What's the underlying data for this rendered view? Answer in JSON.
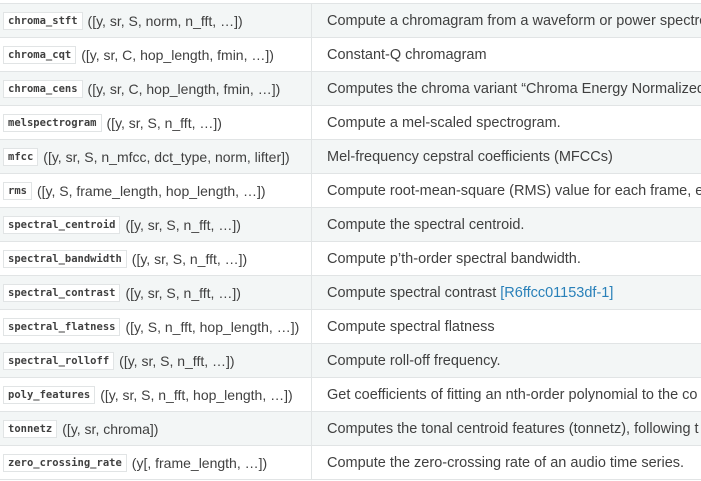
{
  "rows": [
    {
      "func": "chroma_stft",
      "args": "([y, sr, S, norm, n_fft, …])",
      "desc": "Compute a chromagram from a waveform or power spectro"
    },
    {
      "func": "chroma_cqt",
      "args": "([y, sr, C, hop_length, fmin, …])",
      "desc": "Constant-Q chromagram"
    },
    {
      "func": "chroma_cens",
      "args": "([y, sr, C, hop_length, fmin, …])",
      "desc": "Computes the chroma variant “Chroma Energy Normalized”"
    },
    {
      "func": "melspectrogram",
      "args": "([y, sr, S, n_fft, …])",
      "desc": "Compute a mel-scaled spectrogram."
    },
    {
      "func": "mfcc",
      "args": "([y, sr, S, n_mfcc, dct_type, norm, lifter])",
      "desc": "Mel-frequency cepstral coefficients (MFCCs)"
    },
    {
      "func": "rms",
      "args": "([y, S, frame_length, hop_length, …])",
      "desc": "Compute root-mean-square (RMS) value for each frame, eit"
    },
    {
      "func": "spectral_centroid",
      "args": "([y, sr, S, n_fft, …])",
      "desc": "Compute the spectral centroid."
    },
    {
      "func": "spectral_bandwidth",
      "args": "([y, sr, S, n_fft, …])",
      "desc": "Compute p’th-order spectral bandwidth."
    },
    {
      "func": "spectral_contrast",
      "args": "([y, sr, S, n_fft, …])",
      "desc": "Compute spectral contrast",
      "link": "[R6ffcc01153df-1]"
    },
    {
      "func": "spectral_flatness",
      "args": "([y, S, n_fft, hop_length, …])",
      "desc": "Compute spectral flatness"
    },
    {
      "func": "spectral_rolloff",
      "args": "([y, sr, S, n_fft, …])",
      "desc": "Compute roll-off frequency."
    },
    {
      "func": "poly_features",
      "args": "([y, sr, S, n_fft, hop_length, …])",
      "desc": "Get coefficients of fitting an nth-order polynomial to the co"
    },
    {
      "func": "tonnetz",
      "args": "([y, sr, chroma])",
      "desc": "Computes the tonal centroid features (tonnetz), following t"
    },
    {
      "func": "zero_crossing_rate",
      "args": "(y[, frame_length, …])",
      "desc": "Compute the zero-crossing rate of an audio time series."
    }
  ]
}
